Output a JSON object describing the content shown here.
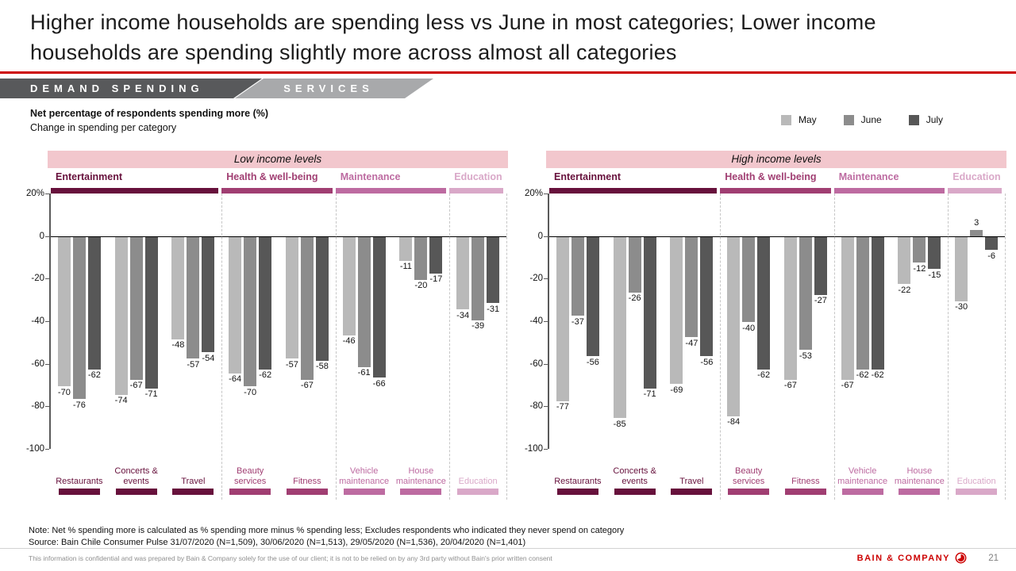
{
  "title": "Higher income households are spending less vs June in most categories; Lower income households are spending slightly more across almost all categories",
  "tabs": [
    {
      "label": "DEMAND SPENDING"
    },
    {
      "label": "SERVICES"
    }
  ],
  "kicker": {
    "line1": "Net percentage of respondents spending more (%)",
    "line2": "Change in spending per category"
  },
  "legend": {
    "items": [
      {
        "label": "May",
        "color": "#b9b9b9"
      },
      {
        "label": "June",
        "color": "#8c8c8c"
      },
      {
        "label": "July",
        "color": "#575757"
      }
    ]
  },
  "colors": {
    "accent_red": "#cc0000",
    "tab_dark_gray": "#58595b",
    "tab_light_gray": "#a8a9ab",
    "income_band_pink": "#f2c7cd"
  },
  "notes": {
    "note": "Note: Net % spending more is calculated as % spending more minus % spending less; Excludes respondents who indicated they never spend on category",
    "source": "Source: Bain Chile Consumer Pulse 31/07/2020 (N=1,509), 30/06/2020 (N=1,513), 29/05/2020 (N=1,536), 20/04/2020 (N=1,401)"
  },
  "footer": {
    "disclaimer": "This information is confidential and was prepared by Bain & Company solely for the use of our client; it is not to be relied on by any 3rd party without Bain's prior written consent",
    "brand": "BAIN & COMPANY",
    "page": "21"
  },
  "chart_data": [
    {
      "type": "bar",
      "title": "Low income levels",
      "ylim": [
        -100,
        20
      ],
      "yticks": [
        20,
        0,
        -20,
        -40,
        -60,
        -80,
        -100
      ],
      "ytick_labels": [
        "20%",
        "0",
        "-20",
        "-40",
        "-60",
        "-80",
        "-100"
      ],
      "grid": "none",
      "legend_position": "top-right-shared",
      "category_groups": [
        {
          "name": "Entertainment",
          "color": "#67113c",
          "span": 3
        },
        {
          "name": "Health & well-being",
          "color": "#a03e72",
          "span": 2
        },
        {
          "name": "Maintenance",
          "color": "#bd6ba1",
          "span": 2
        },
        {
          "name": "Education",
          "color": "#d9a8c8",
          "span": 1
        }
      ],
      "categories": [
        "Restaurants",
        "Concerts & events",
        "Travel",
        "Beauty services",
        "Fitness",
        "Vehicle maintenance",
        "House maintenance",
        "Education"
      ],
      "series": [
        {
          "name": "May",
          "values": [
            -70,
            -74,
            -48,
            -64,
            -57,
            -46,
            -11,
            -34
          ]
        },
        {
          "name": "June",
          "values": [
            -76,
            -67,
            -57,
            -70,
            -67,
            -61,
            -20,
            -39
          ]
        },
        {
          "name": "July",
          "values": [
            -62,
            -71,
            -54,
            -62,
            -58,
            -66,
            -17,
            -31
          ]
        }
      ]
    },
    {
      "type": "bar",
      "title": "High income levels",
      "ylim": [
        -100,
        20
      ],
      "yticks": [
        20,
        0,
        -20,
        -40,
        -60,
        -80,
        -100
      ],
      "ytick_labels": [
        "20%",
        "0",
        "-20",
        "-40",
        "-60",
        "-80",
        "-100"
      ],
      "grid": "none",
      "legend_position": "top-right-shared",
      "category_groups": [
        {
          "name": "Entertainment",
          "color": "#67113c",
          "span": 3
        },
        {
          "name": "Health & well-being",
          "color": "#a03e72",
          "span": 2
        },
        {
          "name": "Maintenance",
          "color": "#bd6ba1",
          "span": 2
        },
        {
          "name": "Education",
          "color": "#d9a8c8",
          "span": 1
        }
      ],
      "categories": [
        "Restaurants",
        "Concerts & events",
        "Travel",
        "Beauty services",
        "Fitness",
        "Vehicle maintenance",
        "House maintenance",
        "Education"
      ],
      "series": [
        {
          "name": "May",
          "values": [
            -77,
            -85,
            -69,
            -84,
            -67,
            -67,
            -22,
            -30
          ]
        },
        {
          "name": "June",
          "values": [
            -37,
            -26,
            -47,
            -40,
            -53,
            -62,
            -12,
            3
          ]
        },
        {
          "name": "July",
          "values": [
            -56,
            -71,
            -56,
            -62,
            -27,
            -62,
            -15,
            -6
          ]
        }
      ]
    }
  ]
}
